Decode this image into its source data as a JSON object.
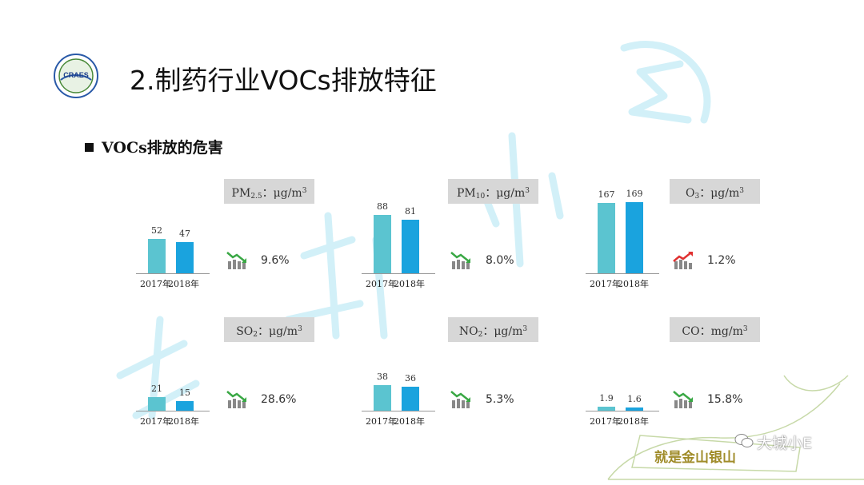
{
  "logo": {
    "text": "CRAES"
  },
  "title": "2.制药行业VOCs排放特征",
  "subtitle": "VOCs排放的危害",
  "watermark": {
    "brand": "大城小E",
    "tagline": "就是金山银山"
  },
  "colors": {
    "bar2017": "#5bc4d0",
    "bar2018": "#1aa3de",
    "trend_down": "#3aa845",
    "trend_up": "#e03030",
    "unit_bg": "#d7d7d7"
  },
  "chart_data": [
    {
      "type": "bar",
      "id": "pm25",
      "unit_label": "PM",
      "unit_sub": "2.5",
      "unit_rest": "：μg/m",
      "unit_sup": "3",
      "categories": [
        "2017年",
        "2018年"
      ],
      "values": [
        52,
        47
      ],
      "labels": [
        "52",
        "47"
      ],
      "trend": "down",
      "change": "9.6%"
    },
    {
      "type": "bar",
      "id": "pm10",
      "unit_label": "PM",
      "unit_sub": "10",
      "unit_rest": "：μg/m",
      "unit_sup": "3",
      "categories": [
        "2017年",
        "2018年"
      ],
      "values": [
        88,
        81
      ],
      "labels": [
        "88",
        "81"
      ],
      "trend": "down",
      "change": "8.0%"
    },
    {
      "type": "bar",
      "id": "o3",
      "unit_label": "O",
      "unit_sub": "3",
      "unit_rest": "：μg/m",
      "unit_sup": "3",
      "categories": [
        "2017年",
        "2018年"
      ],
      "values": [
        167,
        169
      ],
      "labels": [
        "167",
        "169"
      ],
      "trend": "up",
      "change": "1.2%"
    },
    {
      "type": "bar",
      "id": "so2",
      "unit_label": "SO",
      "unit_sub": "2",
      "unit_rest": "：μg/m",
      "unit_sup": "3",
      "categories": [
        "2017年",
        "2018年"
      ],
      "values": [
        21,
        15
      ],
      "labels": [
        "21",
        "15"
      ],
      "trend": "down",
      "change": "28.6%"
    },
    {
      "type": "bar",
      "id": "no2",
      "unit_label": "NO",
      "unit_sub": "2",
      "unit_rest": "：μg/m",
      "unit_sup": "3",
      "categories": [
        "2017年",
        "2018年"
      ],
      "values": [
        38,
        36
      ],
      "labels": [
        "38",
        "36"
      ],
      "trend": "down",
      "change": "5.3%"
    },
    {
      "type": "bar",
      "id": "co",
      "unit_label": "CO",
      "unit_sub": "",
      "unit_rest": "：mg/m",
      "unit_sup": "3",
      "categories": [
        "2017年",
        "2018年"
      ],
      "values": [
        1.9,
        1.6
      ],
      "labels": [
        "1.9",
        "1.6"
      ],
      "trend": "down",
      "change": "15.8%"
    }
  ]
}
